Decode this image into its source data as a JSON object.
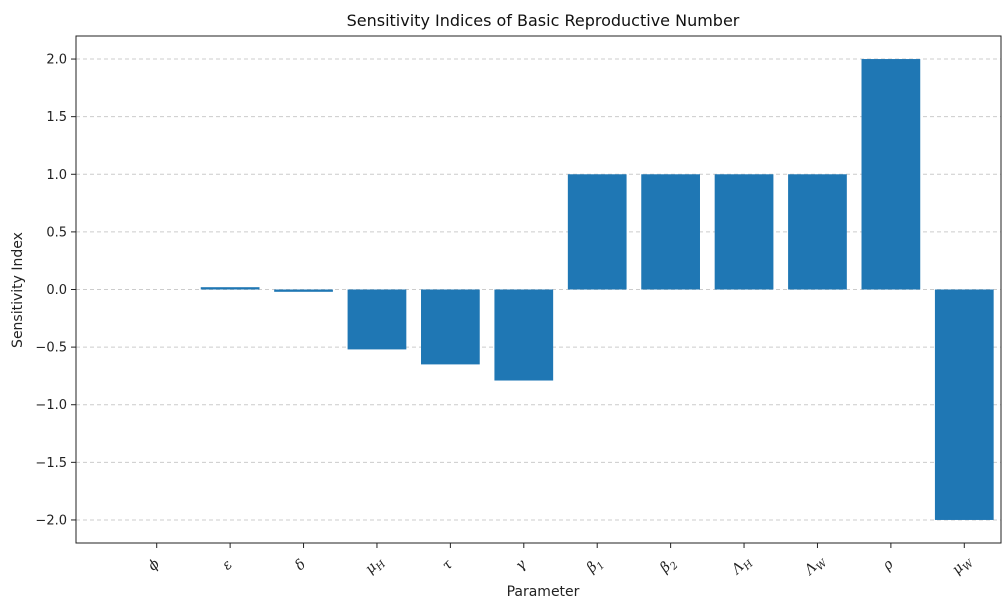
{
  "chart_data": {
    "type": "bar",
    "title": "Sensitivity Indices of Basic Reproductive Number",
    "xlabel": "Parameter",
    "ylabel": "Sensitivity Index",
    "categories": [
      "ϕ",
      "ε",
      "δ",
      "μH",
      "τ",
      "γ",
      "β1",
      "β2",
      "ΛH",
      "ΛW",
      "ρ",
      "μW"
    ],
    "values": [
      0.0,
      0.02,
      -0.02,
      -0.52,
      -0.65,
      -0.79,
      1.0,
      1.0,
      1.0,
      1.0,
      2.0,
      -2.0
    ],
    "ylim": [
      -2.2,
      2.2
    ],
    "yticks": [
      -2.0,
      -1.5,
      -1.0,
      -0.5,
      0.0,
      0.5,
      1.0,
      1.5,
      2.0
    ],
    "ytick_labels": [
      "−2.0",
      "−1.5",
      "−1.0",
      "−0.5",
      "0.0",
      "0.5",
      "1.0",
      "1.5",
      "2.0"
    ],
    "grid": "horizontal-dashed",
    "bar_color": "#1f77b4",
    "grid_color": "#cccccc"
  }
}
